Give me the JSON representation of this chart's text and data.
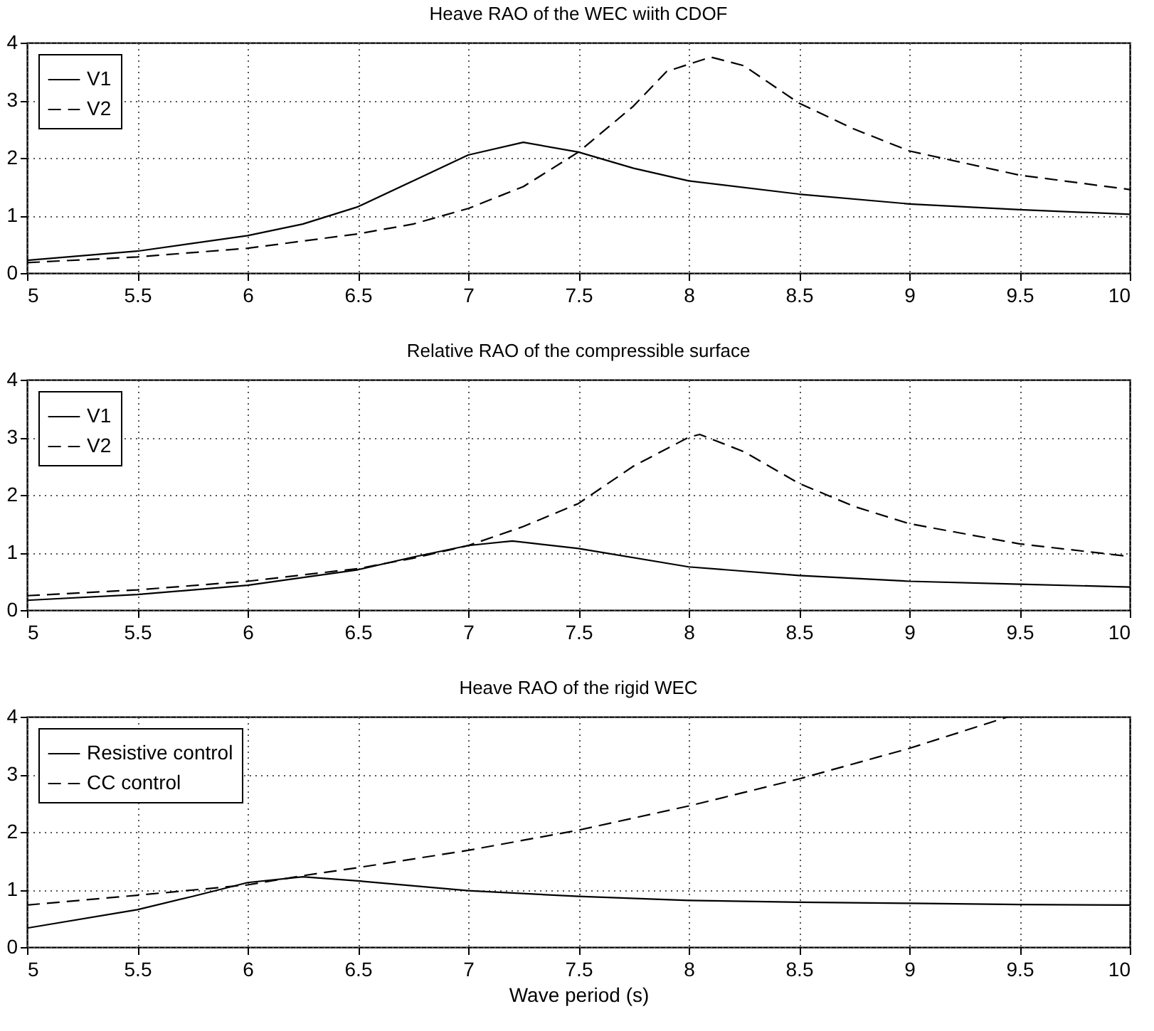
{
  "chart_data": [
    {
      "type": "line",
      "title": "Heave RAO of the WEC wiith CDOF",
      "xlim": [
        5,
        10
      ],
      "xticks": [
        5,
        5.5,
        6,
        6.5,
        7,
        7.5,
        8,
        8.5,
        9,
        9.5,
        10
      ],
      "ylim": [
        0,
        4
      ],
      "yticks": [
        0,
        1,
        2,
        3,
        4
      ],
      "grid": true,
      "legend": "top left",
      "series": [
        {
          "name": "V1",
          "color": "#000000",
          "line_style": "solid",
          "x": [
            5,
            5.5,
            6,
            6.25,
            6.5,
            6.75,
            7,
            7.25,
            7.5,
            7.75,
            8,
            8.5,
            9,
            9.5,
            10
          ],
          "values": [
            0.22,
            0.38,
            0.65,
            0.85,
            1.15,
            1.6,
            2.05,
            2.27,
            2.1,
            1.82,
            1.6,
            1.37,
            1.2,
            1.1,
            1.02
          ]
        },
        {
          "name": "V2",
          "color": "#000000",
          "line_style": "dashed",
          "x": [
            5,
            5.5,
            6,
            6.5,
            6.75,
            7,
            7.25,
            7.5,
            7.75,
            7.9,
            8.1,
            8.25,
            8.5,
            8.75,
            9,
            9.5,
            10
          ],
          "values": [
            0.18,
            0.28,
            0.43,
            0.68,
            0.85,
            1.12,
            1.5,
            2.1,
            2.9,
            3.5,
            3.75,
            3.6,
            2.95,
            2.5,
            2.12,
            1.7,
            1.45
          ]
        }
      ]
    },
    {
      "type": "line",
      "title": "Relative RAO of the compressible surface",
      "xlim": [
        5,
        10
      ],
      "xticks": [
        5,
        5.5,
        6,
        6.5,
        7,
        7.5,
        8,
        8.5,
        9,
        9.5,
        10
      ],
      "ylim": [
        0,
        4
      ],
      "yticks": [
        0,
        1,
        2,
        3,
        4
      ],
      "grid": true,
      "legend": "top left",
      "series": [
        {
          "name": "V1",
          "color": "#000000",
          "line_style": "solid",
          "x": [
            5,
            5.5,
            6,
            6.5,
            6.75,
            7,
            7.2,
            7.5,
            8,
            8.5,
            9,
            9.5,
            10
          ],
          "values": [
            0.17,
            0.27,
            0.43,
            0.7,
            0.92,
            1.12,
            1.2,
            1.07,
            0.75,
            0.6,
            0.5,
            0.45,
            0.4
          ]
        },
        {
          "name": "V2",
          "color": "#000000",
          "line_style": "dashed",
          "x": [
            5,
            5.5,
            6,
            6.5,
            6.75,
            7,
            7.25,
            7.5,
            7.75,
            8,
            8.05,
            8.25,
            8.5,
            8.75,
            9,
            9.5,
            10
          ],
          "values": [
            0.25,
            0.35,
            0.5,
            0.72,
            0.9,
            1.12,
            1.45,
            1.85,
            2.5,
            3.0,
            3.05,
            2.75,
            2.2,
            1.8,
            1.5,
            1.15,
            0.93
          ]
        }
      ]
    },
    {
      "type": "line",
      "title": "Heave RAO of the rigid WEC",
      "xlabel": "Wave period (s)",
      "xlim": [
        5,
        10
      ],
      "xticks": [
        5,
        5.5,
        6,
        6.5,
        7,
        7.5,
        8,
        8.5,
        9,
        9.5,
        10
      ],
      "ylim": [
        0,
        4
      ],
      "yticks": [
        0,
        1,
        2,
        3,
        4
      ],
      "grid": true,
      "legend": "top left",
      "series": [
        {
          "name": "Resistive control",
          "color": "#000000",
          "line_style": "solid",
          "x": [
            5,
            5.5,
            5.75,
            6,
            6.25,
            6.5,
            7,
            7.5,
            8,
            8.5,
            9,
            9.5,
            10
          ],
          "values": [
            0.33,
            0.65,
            0.88,
            1.12,
            1.22,
            1.15,
            0.98,
            0.88,
            0.81,
            0.78,
            0.76,
            0.74,
            0.73
          ]
        },
        {
          "name": "CC control",
          "color": "#000000",
          "line_style": "dashed",
          "x": [
            5,
            5.5,
            6,
            6.25,
            6.5,
            7,
            7.5,
            8,
            8.5,
            9,
            9.45
          ],
          "values": [
            0.73,
            0.9,
            1.08,
            1.24,
            1.38,
            1.68,
            2.03,
            2.45,
            2.92,
            3.45,
            4.0
          ]
        }
      ]
    }
  ]
}
